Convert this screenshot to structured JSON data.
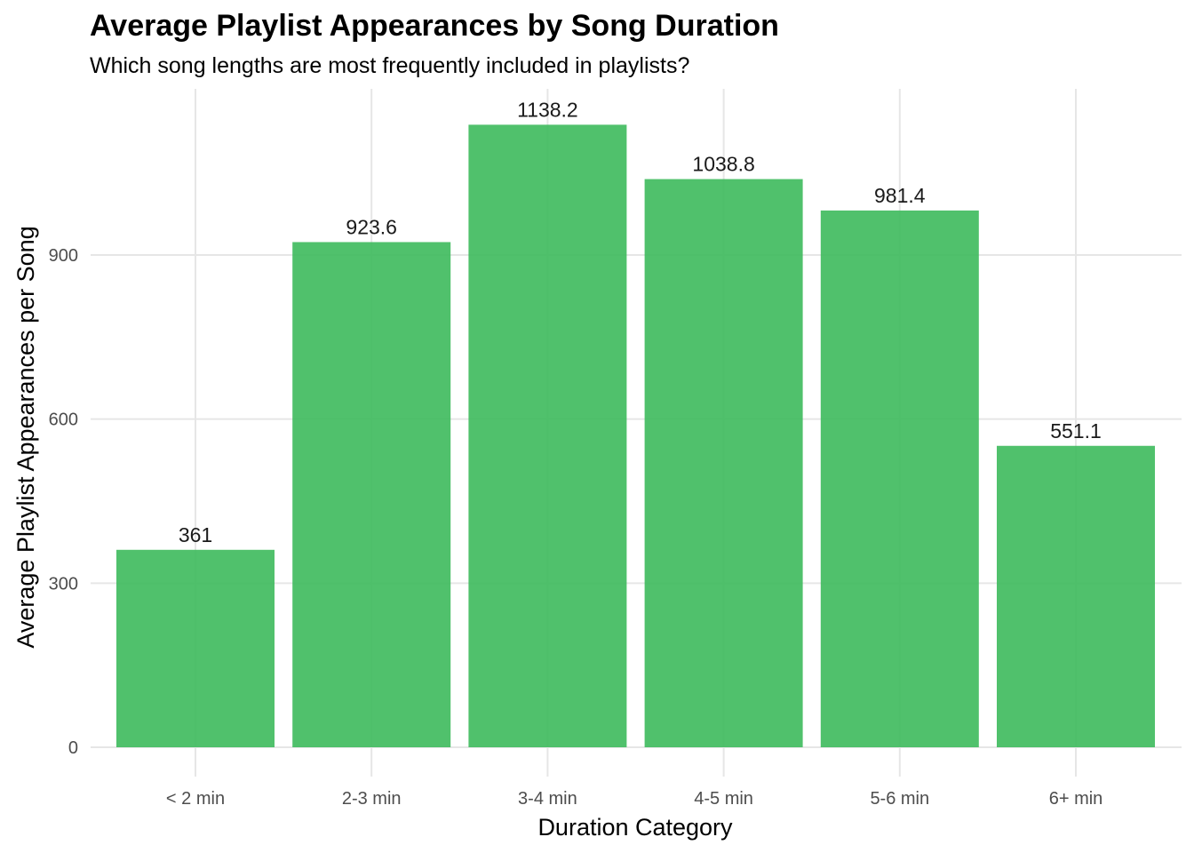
{
  "chart_data": {
    "type": "bar",
    "title": "Average Playlist Appearances by Song Duration",
    "subtitle": "Which song lengths are most frequently included in playlists?",
    "xlabel": "Duration Category",
    "ylabel": "Average Playlist Appearances per Song",
    "categories": [
      "< 2 min",
      "2-3 min",
      "3-4 min",
      "4-5 min",
      "5-6 min",
      "6+ min"
    ],
    "values": [
      361,
      923.6,
      1138.2,
      1038.8,
      981.4,
      551.1
    ],
    "value_labels": [
      "361",
      "923.6",
      "1138.2",
      "1038.8",
      "981.4",
      "551.1"
    ],
    "yticks": [
      0,
      300,
      600,
      900
    ],
    "ylim": [
      0,
      1200
    ],
    "grid": true,
    "legend": "none",
    "bar_color": "#3dba5c"
  }
}
